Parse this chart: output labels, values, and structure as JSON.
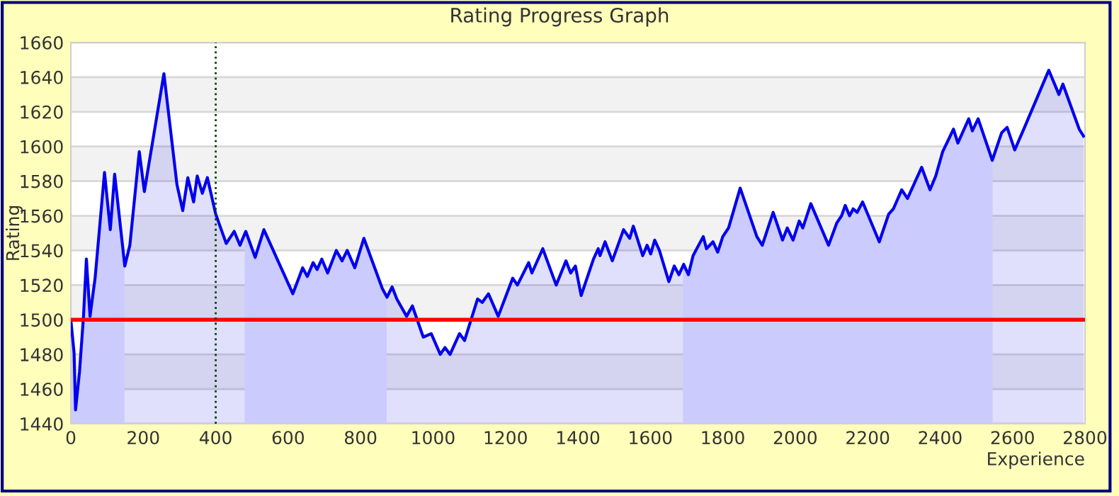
{
  "chart_data": {
    "type": "area",
    "title": "Rating Progress Graph",
    "xlabel": "Experience",
    "ylabel": "Rating",
    "xlim": [
      0,
      2800
    ],
    "xticks": [
      0,
      200,
      400,
      600,
      800,
      1000,
      1200,
      1400,
      1600,
      1800,
      2000,
      2200,
      2400,
      2600,
      2800
    ],
    "ylim": [
      1440,
      1660
    ],
    "yticks": [
      1440,
      1460,
      1480,
      1500,
      1520,
      1540,
      1560,
      1580,
      1600,
      1620,
      1640,
      1660
    ],
    "grid": "y",
    "legend": false,
    "marker": "none",
    "line_style": "solid",
    "ref_lines": [
      {
        "axis": "y",
        "value": 1500,
        "color": "#ff0000",
        "line_style": "solid"
      },
      {
        "axis": "x",
        "value": 400,
        "color": "#004400",
        "line_style": "dotted"
      }
    ],
    "bands": [
      {
        "axis": "x",
        "from": 0,
        "to": 148,
        "color": "#e8e8ff"
      },
      {
        "axis": "x",
        "from": 480,
        "to": 872,
        "color": "#e8e8ff"
      },
      {
        "axis": "x",
        "from": 1690,
        "to": 2545,
        "color": "#e8e8ff"
      }
    ],
    "series": [
      {
        "color": "#0000ee",
        "x": [
          0,
          9,
          13,
          24,
          35,
          43,
          53,
          67,
          93,
          109,
          121,
          149,
          163,
          189,
          203,
          257,
          293,
          309,
          323,
          339,
          349,
          363,
          377,
          400,
          429,
          451,
          467,
          483,
          509,
          533,
          613,
          640,
          653,
          669,
          680,
          693,
          709,
          733,
          749,
          763,
          784,
          809,
          860,
          873,
          887,
          900,
          927,
          943,
          973,
          995,
          1020,
          1033,
          1047,
          1073,
          1087,
          1123,
          1136,
          1153,
          1180,
          1220,
          1233,
          1264,
          1273,
          1303,
          1340,
          1367,
          1380,
          1393,
          1409,
          1443,
          1456,
          1461,
          1475,
          1495,
          1526,
          1543,
          1553,
          1579,
          1591,
          1601,
          1612,
          1625,
          1651,
          1666,
          1679,
          1692,
          1705,
          1718,
          1746,
          1755,
          1773,
          1786,
          1800,
          1816,
          1848,
          1894,
          1909,
          1939,
          1965,
          1978,
          1994,
          2011,
          2021,
          2043,
          2092,
          2115,
          2128,
          2138,
          2150,
          2160,
          2171,
          2186,
          2232,
          2258,
          2271,
          2294,
          2310,
          2349,
          2372,
          2388,
          2407,
          2437,
          2449,
          2479,
          2489,
          2505,
          2544,
          2570,
          2585,
          2606,
          2635,
          2700,
          2728,
          2739,
          2784,
          2796
        ],
        "values": [
          1500,
          1481,
          1448,
          1470,
          1502,
          1535,
          1502,
          1524,
          1585,
          1552,
          1584,
          1531,
          1543,
          1597,
          1574,
          1642,
          1578,
          1563,
          1582,
          1568,
          1583,
          1573,
          1582,
          1561,
          1544,
          1551,
          1543,
          1551,
          1536,
          1552,
          1515,
          1530,
          1525,
          1533,
          1529,
          1535,
          1527,
          1540,
          1534,
          1540,
          1530,
          1547,
          1518,
          1513,
          1519,
          1512,
          1502,
          1508,
          1490,
          1492,
          1480,
          1484,
          1480,
          1492,
          1488,
          1512,
          1510,
          1515,
          1502,
          1524,
          1520,
          1533,
          1527,
          1541,
          1520,
          1534,
          1527,
          1531,
          1514,
          1535,
          1541,
          1537,
          1545,
          1534,
          1552,
          1547,
          1554,
          1537,
          1543,
          1538,
          1546,
          1540,
          1522,
          1531,
          1526,
          1532,
          1526,
          1537,
          1548,
          1541,
          1545,
          1539,
          1548,
          1553,
          1576,
          1548,
          1543,
          1562,
          1546,
          1553,
          1546,
          1557,
          1553,
          1567,
          1543,
          1556,
          1560,
          1566,
          1560,
          1564,
          1562,
          1568,
          1545,
          1561,
          1564,
          1575,
          1570,
          1588,
          1575,
          1583,
          1597,
          1610,
          1602,
          1616,
          1609,
          1616,
          1592,
          1608,
          1611,
          1598,
          1612,
          1644,
          1630,
          1636,
          1610,
          1606
        ]
      }
    ]
  }
}
